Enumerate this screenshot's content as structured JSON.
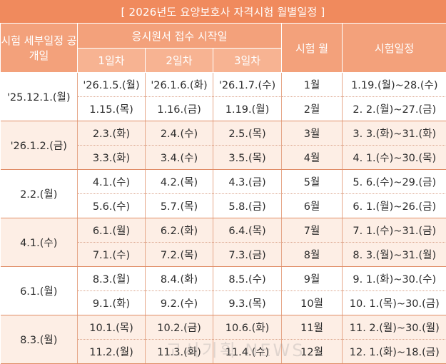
{
  "title": "[ 2026년도 요양보호사 자격시험 월별일정 ]",
  "headers": {
    "col_open": "시험 세부일정 공개일",
    "col_apply": "응시원서 접수 시작일",
    "day1": "1일차",
    "day2": "2일차",
    "day3": "3일차",
    "col_month": "시험 월",
    "col_schedule": "시험일정"
  },
  "groups": [
    {
      "open_date": "'25.12.1.(월)",
      "shaded": false,
      "rows": [
        {
          "day1": "'26.1.5.(월)",
          "day2": "'26.1.6.(화)",
          "day3": "'26.1.7.(수)",
          "month": "1월",
          "schedule": "1.19.(월)~28.(수)"
        },
        {
          "day1": "1.15.(목)",
          "day2": "1.16.(금)",
          "day3": "1.19.(월)",
          "month": "2월",
          "schedule": "2. 2.(월)~27.(금)"
        }
      ]
    },
    {
      "open_date": "'26.1.2.(금)",
      "shaded": true,
      "rows": [
        {
          "day1": "2.3.(화)",
          "day2": "2.4.(수)",
          "day3": "2.5.(목)",
          "month": "3월",
          "schedule": "3. 3.(화)~31.(화)"
        },
        {
          "day1": "3.3.(화)",
          "day2": "3.4.(수)",
          "day3": "3.5.(목)",
          "month": "4월",
          "schedule": "4. 1.(수)~30.(목)"
        }
      ]
    },
    {
      "open_date": "2.2.(월)",
      "shaded": false,
      "rows": [
        {
          "day1": "4.1.(수)",
          "day2": "4.2.(목)",
          "day3": "4.3.(금)",
          "month": "5월",
          "schedule": "5. 6.(수)~29.(금)"
        },
        {
          "day1": "5.6.(수)",
          "day2": "5.7.(목)",
          "day3": "5.8.(금)",
          "month": "6월",
          "schedule": "6. 1.(월)~26.(금)"
        }
      ]
    },
    {
      "open_date": "4.1.(수)",
      "shaded": true,
      "rows": [
        {
          "day1": "6.1.(월)",
          "day2": "6.2.(화)",
          "day3": "6.4.(목)",
          "month": "7월",
          "schedule": "7. 1.(수)~31.(금)"
        },
        {
          "day1": "7.1.(수)",
          "day2": "7.2.(목)",
          "day3": "7.3.(금)",
          "month": "8월",
          "schedule": "8. 3.(월)~31.(월)"
        }
      ]
    },
    {
      "open_date": "6.1.(월)",
      "shaded": false,
      "rows": [
        {
          "day1": "8.3.(월)",
          "day2": "8.4.(화)",
          "day3": "8.5.(수)",
          "month": "9월",
          "schedule": "9. 1.(화)~30.(수)"
        },
        {
          "day1": "9.1.(화)",
          "day2": "9.2.(수)",
          "day3": "9.3.(목)",
          "month": "10월",
          "schedule": "10. 1.(목)~30.(금)"
        }
      ]
    },
    {
      "open_date": "8.3.(월)",
      "shaded": true,
      "rows": [
        {
          "day1": "10.1.(목)",
          "day2": "10.2.(금)",
          "day3": "10.6.(화)",
          "month": "11월",
          "schedule": "11. 2.(월)~30.(월)"
        },
        {
          "day1": "11.2.(월)",
          "day2": "11.3.(화)",
          "day3": "11.4.(수)",
          "month": "12월",
          "schedule": "12. 1.(화)~18.(금)"
        }
      ]
    }
  ],
  "watermark": "고시기획 NEWS"
}
